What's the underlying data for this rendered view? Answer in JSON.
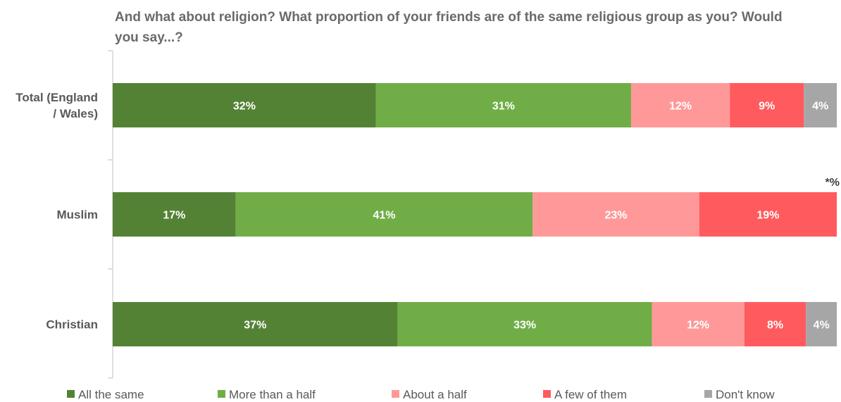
{
  "chart_data": {
    "type": "bar",
    "orientation": "horizontal",
    "stacked": true,
    "title": "And what about religion? What proportion of your friends are of the same religious group as you? Would you say...?",
    "categories": [
      "Total (England / Wales)",
      "Muslim",
      "Christian"
    ],
    "category_lines": [
      [
        "Total (England",
        "/ Wales)"
      ],
      [
        "Muslim"
      ],
      [
        "Christian"
      ]
    ],
    "series": [
      {
        "name": "All the same",
        "color": "#548235",
        "values": [
          32,
          17,
          37
        ],
        "labels": [
          "32%",
          "17%",
          "37%"
        ]
      },
      {
        "name": "More than a half",
        "color": "#70AD47",
        "values": [
          31,
          41,
          33
        ],
        "labels": [
          "31%",
          "41%",
          "33%"
        ]
      },
      {
        "name": "About a half",
        "color": "#FF9999",
        "values": [
          12,
          23,
          12
        ],
        "labels": [
          "12%",
          "23%",
          "12%"
        ]
      },
      {
        "name": "A few of them",
        "color": "#FF5B5E",
        "values": [
          9,
          19,
          8
        ],
        "labels": [
          "9%",
          "19%",
          "8%"
        ]
      },
      {
        "name": "Don't know",
        "color": "#A6A6A6",
        "values": [
          4,
          0,
          4
        ],
        "labels": [
          "4%",
          "",
          "4%"
        ]
      }
    ],
    "annotations": [
      {
        "category": "Muslim",
        "text": "*%",
        "placement": "above-right"
      }
    ],
    "xlabel": "",
    "ylabel": "",
    "grid": false,
    "legend": "bottom"
  }
}
